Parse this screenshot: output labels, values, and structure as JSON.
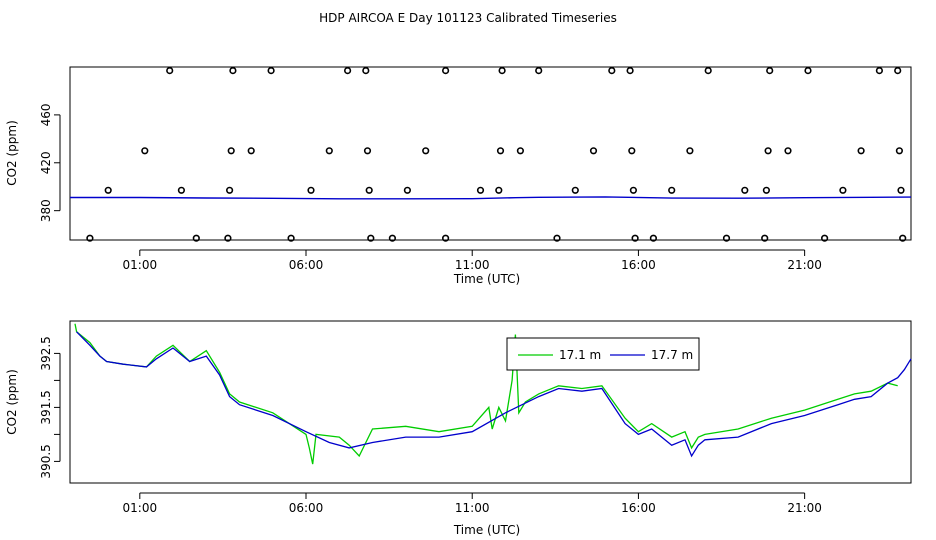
{
  "title": "HDP AIRCOA E  Day 101123  Calibrated Timeseries",
  "colors": {
    "green": "#00cc00",
    "blue": "#0000cc",
    "axis": "#000000"
  },
  "chart_data": [
    {
      "type": "scatter",
      "xlabel": "Time (UTC)",
      "ylabel": "CO2 (ppm)",
      "x_unit": "hours UTC",
      "xlim": [
        -1.1,
        24.2
      ],
      "ylim": [
        355.5,
        500
      ],
      "x_ticks": [
        {
          "v": 1,
          "label": "01:00"
        },
        {
          "v": 6,
          "label": "06:00"
        },
        {
          "v": 11,
          "label": "11:00"
        },
        {
          "v": 16,
          "label": "16:00"
        },
        {
          "v": 21,
          "label": "21:00"
        }
      ],
      "y_ticks": [
        {
          "v": 380,
          "label": "380"
        },
        {
          "v": 420,
          "label": "420"
        },
        {
          "v": 460,
          "label": "460"
        }
      ],
      "baseline": {
        "x": [
          -1.1,
          1,
          3,
          5,
          7,
          9,
          11,
          12.3,
          13,
          15,
          17,
          19,
          21,
          23,
          24.2
        ],
        "y": [
          391.0,
          391.0,
          390.6,
          390.3,
          389.9,
          389.9,
          390.0,
          390.8,
          391.2,
          391.5,
          390.5,
          390.4,
          390.8,
          391.2,
          391.3
        ]
      },
      "outliers": [
        {
          "x": -0.5,
          "y": 357
        },
        {
          "x": 0.05,
          "y": 397
        },
        {
          "x": 1.15,
          "y": 430
        },
        {
          "x": 1.9,
          "y": 497
        },
        {
          "x": 2.25,
          "y": 397
        },
        {
          "x": 2.7,
          "y": 357
        },
        {
          "x": 3.65,
          "y": 357
        },
        {
          "x": 3.7,
          "y": 397
        },
        {
          "x": 3.75,
          "y": 430
        },
        {
          "x": 3.8,
          "y": 497
        },
        {
          "x": 4.35,
          "y": 430
        },
        {
          "x": 4.95,
          "y": 497
        },
        {
          "x": 5.55,
          "y": 357
        },
        {
          "x": 6.15,
          "y": 397
        },
        {
          "x": 6.7,
          "y": 430
        },
        {
          "x": 7.25,
          "y": 497
        },
        {
          "x": 7.8,
          "y": 497
        },
        {
          "x": 7.85,
          "y": 430
        },
        {
          "x": 7.9,
          "y": 397
        },
        {
          "x": 7.95,
          "y": 357
        },
        {
          "x": 8.6,
          "y": 357
        },
        {
          "x": 9.05,
          "y": 397
        },
        {
          "x": 9.6,
          "y": 430
        },
        {
          "x": 10.2,
          "y": 357
        },
        {
          "x": 10.2,
          "y": 497
        },
        {
          "x": 11.25,
          "y": 397
        },
        {
          "x": 11.8,
          "y": 397
        },
        {
          "x": 11.85,
          "y": 430
        },
        {
          "x": 11.9,
          "y": 497
        },
        {
          "x": 12.45,
          "y": 430
        },
        {
          "x": 13.0,
          "y": 497
        },
        {
          "x": 13.55,
          "y": 357
        },
        {
          "x": 14.1,
          "y": 397
        },
        {
          "x": 14.65,
          "y": 430
        },
        {
          "x": 15.2,
          "y": 497
        },
        {
          "x": 15.75,
          "y": 497
        },
        {
          "x": 15.8,
          "y": 430
        },
        {
          "x": 15.85,
          "y": 397
        },
        {
          "x": 15.9,
          "y": 357
        },
        {
          "x": 16.45,
          "y": 357
        },
        {
          "x": 17.0,
          "y": 397
        },
        {
          "x": 17.55,
          "y": 430
        },
        {
          "x": 18.1,
          "y": 497
        },
        {
          "x": 18.65,
          "y": 357
        },
        {
          "x": 19.2,
          "y": 397
        },
        {
          "x": 19.8,
          "y": 357
        },
        {
          "x": 19.85,
          "y": 397
        },
        {
          "x": 19.9,
          "y": 430
        },
        {
          "x": 19.95,
          "y": 497
        },
        {
          "x": 20.5,
          "y": 430
        },
        {
          "x": 21.1,
          "y": 497
        },
        {
          "x": 21.6,
          "y": 357
        },
        {
          "x": 22.15,
          "y": 397
        },
        {
          "x": 22.7,
          "y": 430
        },
        {
          "x": 23.25,
          "y": 497
        },
        {
          "x": 23.8,
          "y": 497
        },
        {
          "x": 23.85,
          "y": 430
        },
        {
          "x": 23.9,
          "y": 397
        },
        {
          "x": 23.95,
          "y": 357
        }
      ]
    },
    {
      "type": "line",
      "xlabel": "Time (UTC)",
      "ylabel": "CO2 (ppm)",
      "x_unit": "hours UTC",
      "xlim": [
        -1.1,
        24.2
      ],
      "ylim": [
        390.1,
        393.1
      ],
      "x_ticks": [
        {
          "v": 1,
          "label": "01:00"
        },
        {
          "v": 6,
          "label": "06:00"
        },
        {
          "v": 11,
          "label": "11:00"
        },
        {
          "v": 16,
          "label": "16:00"
        },
        {
          "v": 21,
          "label": "21:00"
        }
      ],
      "y_ticks": [
        {
          "v": 390.5,
          "label": "390.5"
        },
        {
          "v": 391.5,
          "label": "391.5"
        },
        {
          "v": 392.5,
          "label": "392.5"
        }
      ],
      "y_ticks_minor": [
        391,
        392
      ],
      "legend": {
        "position": "top-center",
        "entries": [
          {
            "name": "17.1 m",
            "color": "#00cc00"
          },
          {
            "name": "17.7 m",
            "color": "#0000cc"
          }
        ]
      },
      "series": [
        {
          "name": "17.7 m",
          "color": "#0000cc",
          "x": [
            -0.9,
            -0.5,
            -0.2,
            0.0,
            0.5,
            1.2,
            1.5,
            2.0,
            2.5,
            3.0,
            3.4,
            3.7,
            4.0,
            5.0,
            6.0,
            6.7,
            7.3,
            8.0,
            9.0,
            10.0,
            11.0,
            12.0,
            13.0,
            13.6,
            14.3,
            14.9,
            15.6,
            16.0,
            16.4,
            17.0,
            17.4,
            17.6,
            17.8,
            18.0,
            19.0,
            20.0,
            21.0,
            22.0,
            22.5,
            23.0,
            23.5,
            23.8,
            24.0,
            24.2
          ],
          "y": [
            392.9,
            392.65,
            392.45,
            392.35,
            392.3,
            392.25,
            392.4,
            392.6,
            392.35,
            392.45,
            392.1,
            391.7,
            391.55,
            391.35,
            391.05,
            390.85,
            390.75,
            390.85,
            390.95,
            390.95,
            391.05,
            391.4,
            391.7,
            391.85,
            391.8,
            391.85,
            391.2,
            391.0,
            391.1,
            390.8,
            390.9,
            390.6,
            390.8,
            390.9,
            390.95,
            391.2,
            391.35,
            391.55,
            391.65,
            391.7,
            391.95,
            392.05,
            392.2,
            392.4
          ]
        },
        {
          "name": "17.1 m",
          "color": "#00cc00",
          "x": [
            -0.95,
            -0.9,
            -0.5,
            -0.2,
            0.0,
            0.5,
            1.2,
            1.5,
            2.0,
            2.5,
            3.0,
            3.4,
            3.7,
            4.0,
            5.0,
            6.0,
            6.1,
            6.2,
            6.3,
            7.0,
            7.3,
            7.6,
            8.0,
            9.0,
            10.0,
            11.0,
            11.5,
            11.6,
            11.8,
            12.0,
            12.2,
            12.3,
            12.4,
            12.6,
            13.0,
            13.6,
            14.3,
            14.9,
            15.6,
            16.0,
            16.4,
            17.0,
            17.4,
            17.6,
            17.8,
            18.0,
            19.0,
            20.0,
            21.0,
            22.0,
            22.5,
            23.0,
            23.5,
            23.8
          ],
          "y": [
            393.05,
            392.9,
            392.7,
            392.45,
            392.35,
            392.3,
            392.25,
            392.45,
            392.65,
            392.35,
            392.55,
            392.15,
            391.75,
            391.6,
            391.4,
            391.0,
            390.75,
            390.45,
            391.0,
            390.95,
            390.8,
            390.6,
            391.1,
            391.15,
            391.05,
            391.15,
            391.5,
            391.1,
            391.5,
            391.25,
            392.0,
            392.85,
            391.4,
            391.6,
            391.75,
            391.9,
            391.85,
            391.9,
            391.3,
            391.05,
            391.2,
            390.95,
            391.05,
            390.75,
            390.95,
            391.0,
            391.1,
            391.3,
            391.45,
            391.65,
            391.75,
            391.8,
            391.95,
            391.9
          ]
        }
      ]
    }
  ]
}
